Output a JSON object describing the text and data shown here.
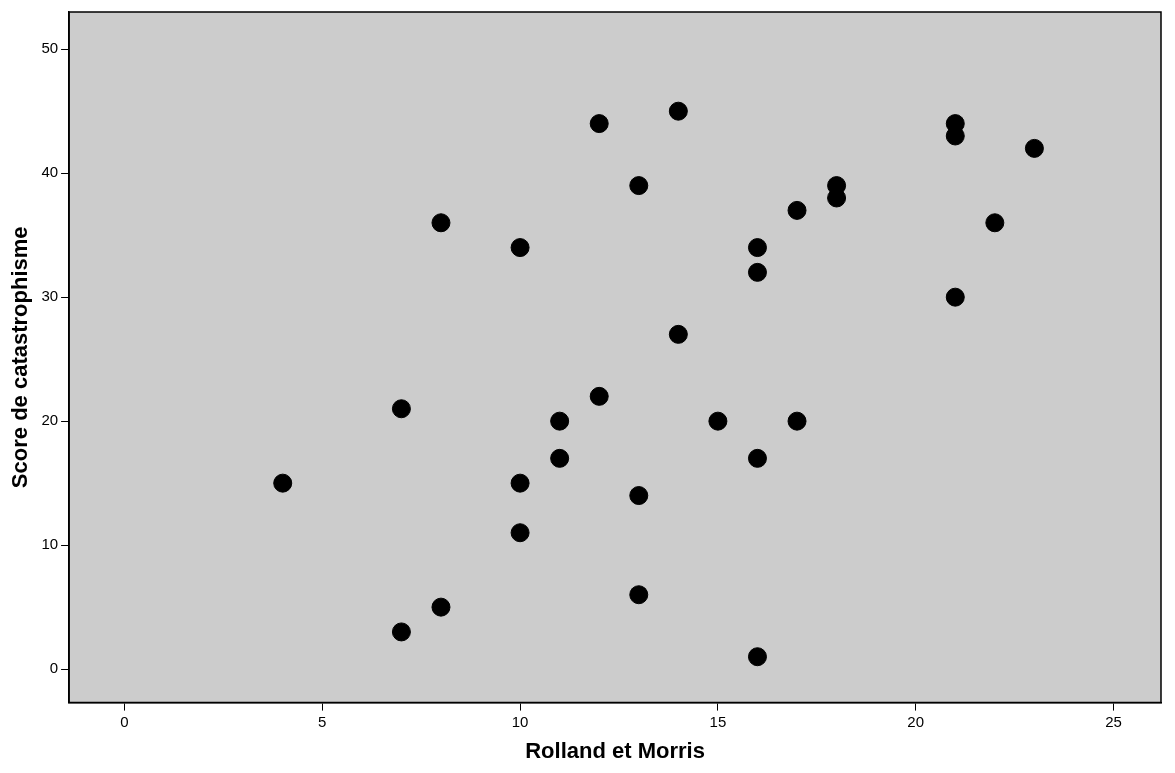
{
  "chart_data": {
    "type": "scatter",
    "xlabel": "Rolland et Morris",
    "ylabel": "Score de catastrophisme",
    "x": [
      4,
      7,
      7,
      8,
      8,
      10,
      10,
      10,
      11,
      11,
      12,
      12,
      13,
      13,
      13,
      14,
      14,
      15,
      16,
      16,
      16,
      16,
      17,
      17,
      18,
      18,
      21,
      21,
      21,
      22,
      23
    ],
    "values": [
      15,
      21,
      3,
      36,
      5,
      34,
      15,
      11,
      20,
      17,
      44,
      22,
      39,
      14,
      6,
      45,
      27,
      20,
      34,
      32,
      17,
      1,
      37,
      20,
      39,
      38,
      44,
      43,
      30,
      36,
      42
    ],
    "color": "#000000",
    "marker": "circle",
    "grid": false,
    "xlim": [
      -1.4,
      26.2
    ],
    "xticks": [
      0,
      5,
      10,
      15,
      20,
      25
    ],
    "ylim": [
      -2.7,
      53
    ],
    "yticks": [
      0,
      10,
      20,
      30,
      40,
      50
    ]
  }
}
